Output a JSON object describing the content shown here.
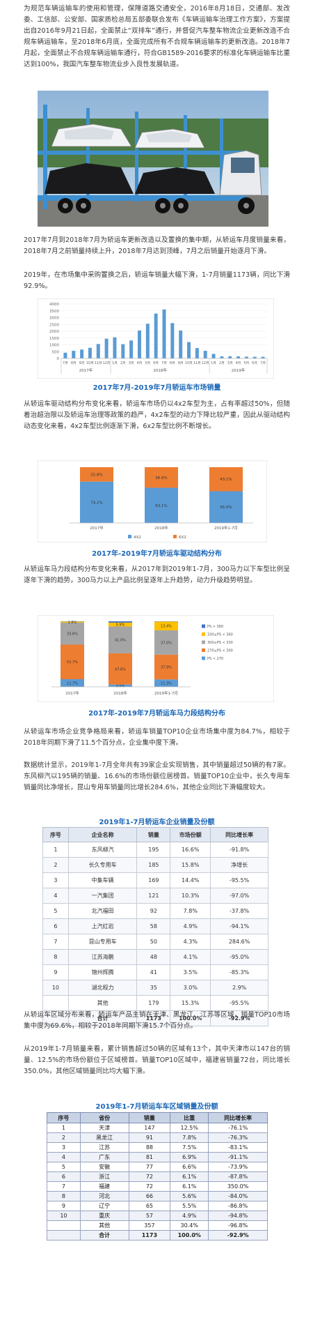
{
  "paragraphs": {
    "p1": "为规范车辆运输车的使用和管理，保障道路交通安全，2016年8月18日，交通部、发改委、工信部、公安部、国家质检总局五部委联合发布《车辆运输车治理工作方案》，方案提出自2016年9月21日起，全面禁止“双排车”通行，并督促汽车整车物流企业更新改造不合规车辆运输车，至2018年6月底，全面完成所有不合规车辆运输车的更新改造。2018年7月起，全面禁止不合规车辆运输车通行，符合GB1589-2016要求的标准化车辆运输车比重达到100%，我国汽车整车物流业步入良性发展轨道。",
    "p2": "2017年7月到2018年7月为轿运车更新改造以及置换的集中期，从轿运车月度销量来看，2018年7月之前销量持续上升，2018年7月达到顶峰，7月之后销量开始逐月下滑。",
    "p3": "2019年，在市场集中采购置换之后，轿运车销量大幅下滑，1-7月销量1173辆，同比下滑92.9%。",
    "p4": "从轿运车驱动结构分布变化来看，轿运车市场仍以4x2车型为主，占有率超过50%，但随着治超治限以及轿运车治理等政策的趋严，4x2车型的动力下降比较严重，因此从驱动结构动态变化来看，4x2车型比例逐渐下滑，6x2车型比例不断增长。",
    "p5": "从轿运车马力段结构分布变化来看，从2017年到2019年1-7月，300马力以下车型比例呈逐年下滑的趋势，300马力以上产品比例呈逐年上升趋势，动力升级趋势明显。",
    "p6": "从轿运车市场企业竞争格局来看，轿运车销量TOP10企业市场集中度为84.7%，相较于2018年同期下滑了11.5个百分点，企业集中度下滑。",
    "p7": "数据统计显示，2019年1-7月全年共有39家企业实现销售，其中销量超过50辆的有7家。东风柳汽以195辆的销量、16.6%的市场份额位居榜首。销量TOP10企业中，长久专用车销量同比净增长，昆山专用车销量同比增长284.6%，其他企业同比下滑幅度较大。",
    "p8": "从轿运车区域分布来看，轿运车产品主销在天津、黑龙江、江苏等区域，销量TOP10市场集中度为69.6%，相较于2018年同期下滑15.7个百分点。",
    "p9": "从2019年1-7月销量来看，累计销售超过50辆的区域有13个，其中天津市以147台的销量、12.5%的市场份额位于区域榜首。销量TOP10区域中，福建省销量72台，同比增长350.0%，其他区域销量同比均大幅下滑。"
  },
  "captions": {
    "c1": "2017年7月-2019年7月轿运车市场销量",
    "c2": "2017年-2019年7月轿运车驱动结构分布",
    "c3": "2017年-2019年7月轿运车马力段结构分布",
    "c4": "2019年1-7月轿运车企业销量及份额",
    "c5": "2019年1-7月轿运车车区域销量及份额"
  },
  "chart_data": [
    {
      "type": "bar",
      "title": "2017年7月-2019年7月轿运车市场销量",
      "categories": [
        "7月",
        "8月",
        "9月",
        "10月",
        "11月",
        "12月",
        "1月",
        "2月",
        "3月",
        "4月",
        "5月",
        "6月",
        "7月",
        "8月",
        "9月",
        "10月",
        "11月",
        "12月",
        "1月",
        "2月",
        "3月",
        "4月",
        "5月",
        "6月",
        "7月"
      ],
      "year_groups": [
        "2017年",
        "2018年",
        "2019年"
      ],
      "values": [
        420,
        560,
        650,
        780,
        1060,
        1450,
        1550,
        1050,
        1320,
        2050,
        2550,
        3300,
        3600,
        2600,
        2050,
        1200,
        760,
        560,
        330,
        150,
        160,
        150,
        130,
        120,
        120
      ],
      "ylim": [
        0,
        4000
      ],
      "yticks": [
        "0",
        "500",
        "1000",
        "1500",
        "2000",
        "2500",
        "3000",
        "3500",
        "4000"
      ]
    },
    {
      "type": "bar",
      "title": "2017年-2019年7月轿运车驱动结构分布",
      "categories": [
        "2017年",
        "2018年",
        "2019年1-7月"
      ],
      "series": [
        {
          "name": "4X2",
          "values": [
            74.2,
            63.1,
            56.9
          ],
          "labels": [
            "74.2%",
            "63.1%",
            "56.9%"
          ],
          "color": "#5b9bd5"
        },
        {
          "name": "6X2",
          "values": [
            25.8,
            36.9,
            43.1
          ],
          "labels": [
            "25.8%",
            "36.9%",
            "43.1%"
          ],
          "color": "#ed7d31"
        }
      ]
    },
    {
      "type": "bar",
      "title": "2017年-2019年7月轿运车马力段结构分布",
      "categories": [
        "2017年",
        "2018年",
        "2019年1-7月"
      ],
      "series": [
        {
          "name": "PS < 270",
          "values": [
            11.7,
            3.5,
            11.3
          ],
          "labels": [
            "11.7%",
            "3.5%",
            "11.3%"
          ],
          "color": "#5b9bd5"
        },
        {
          "name": "270≤PS < 300",
          "values": [
            52.7,
            47.6,
            37.9
          ],
          "labels": [
            "52.7%",
            "47.6%",
            "37.9%"
          ],
          "color": "#ed7d31"
        },
        {
          "name": "300≤PS < 330",
          "values": [
            33.6,
            41.0,
            37.0
          ],
          "labels": [
            "33.6%",
            "41.0%",
            "37.0%"
          ],
          "color": "#a5a5a5"
        },
        {
          "name": "330≤PS < 360",
          "values": [
            1.6,
            5.9,
            13.4
          ],
          "labels": [
            "1.6%",
            "5.9%",
            "13.4%"
          ],
          "color": "#ffc000"
        },
        {
          "name": "PS > 360",
          "values": [
            0.4,
            2.0,
            0.4
          ],
          "labels": [
            "",
            "",
            ""
          ],
          "color": "#4472c4"
        }
      ]
    }
  ],
  "tables": {
    "enterprise": {
      "headers": [
        "序号",
        "企业名称",
        "销量",
        "市场份额",
        "同比增长率"
      ],
      "rows": [
        [
          "1",
          "东风柳汽",
          "195",
          "16.6%",
          "-91.8%"
        ],
        [
          "2",
          "长久专用车",
          "185",
          "15.8%",
          "净增长"
        ],
        [
          "3",
          "中集车辆",
          "169",
          "14.4%",
          "-95.5%"
        ],
        [
          "4",
          "一汽集团",
          "121",
          "10.3%",
          "-97.0%"
        ],
        [
          "5",
          "北汽福田",
          "92",
          "7.8%",
          "-37.8%"
        ],
        [
          "6",
          "上汽红岩",
          "58",
          "4.9%",
          "-94.1%"
        ],
        [
          "7",
          "昆山专用车",
          "50",
          "4.3%",
          "284.6%"
        ],
        [
          "8",
          "江苏海鹏",
          "48",
          "4.1%",
          "-95.0%"
        ],
        [
          "9",
          "锦州辉腾",
          "41",
          "3.5%",
          "-85.3%"
        ],
        [
          "10",
          "湖北程力",
          "35",
          "3.0%",
          "2.9%"
        ],
        [
          "",
          "其他",
          "179",
          "15.3%",
          "-95.5%"
        ],
        [
          "",
          "合计",
          "1173",
          "100.0%",
          "-92.9%"
        ]
      ]
    },
    "region": {
      "headers": [
        "序号",
        "省份",
        "销量",
        "比重",
        "同比增长率"
      ],
      "rows": [
        [
          "1",
          "天津",
          "147",
          "12.5%",
          "-76.1%"
        ],
        [
          "2",
          "黑龙江",
          "91",
          "7.8%",
          "-76.3%"
        ],
        [
          "3",
          "江苏",
          "88",
          "7.5%",
          "-83.1%"
        ],
        [
          "4",
          "广东",
          "81",
          "6.9%",
          "-91.1%"
        ],
        [
          "5",
          "安徽",
          "77",
          "6.6%",
          "-73.9%"
        ],
        [
          "6",
          "浙江",
          "72",
          "6.1%",
          "-87.8%"
        ],
        [
          "7",
          "福建",
          "72",
          "6.1%",
          "350.0%"
        ],
        [
          "8",
          "河北",
          "66",
          "5.6%",
          "-84.0%"
        ],
        [
          "9",
          "辽宁",
          "65",
          "5.5%",
          "-86.8%"
        ],
        [
          "10",
          "重庆",
          "57",
          "4.9%",
          "-94.8%"
        ],
        [
          "",
          "其他",
          "357",
          "30.4%",
          "-96.8%"
        ],
        [
          "",
          "合计",
          "1173",
          "100.0%",
          "-92.9%"
        ]
      ]
    }
  }
}
